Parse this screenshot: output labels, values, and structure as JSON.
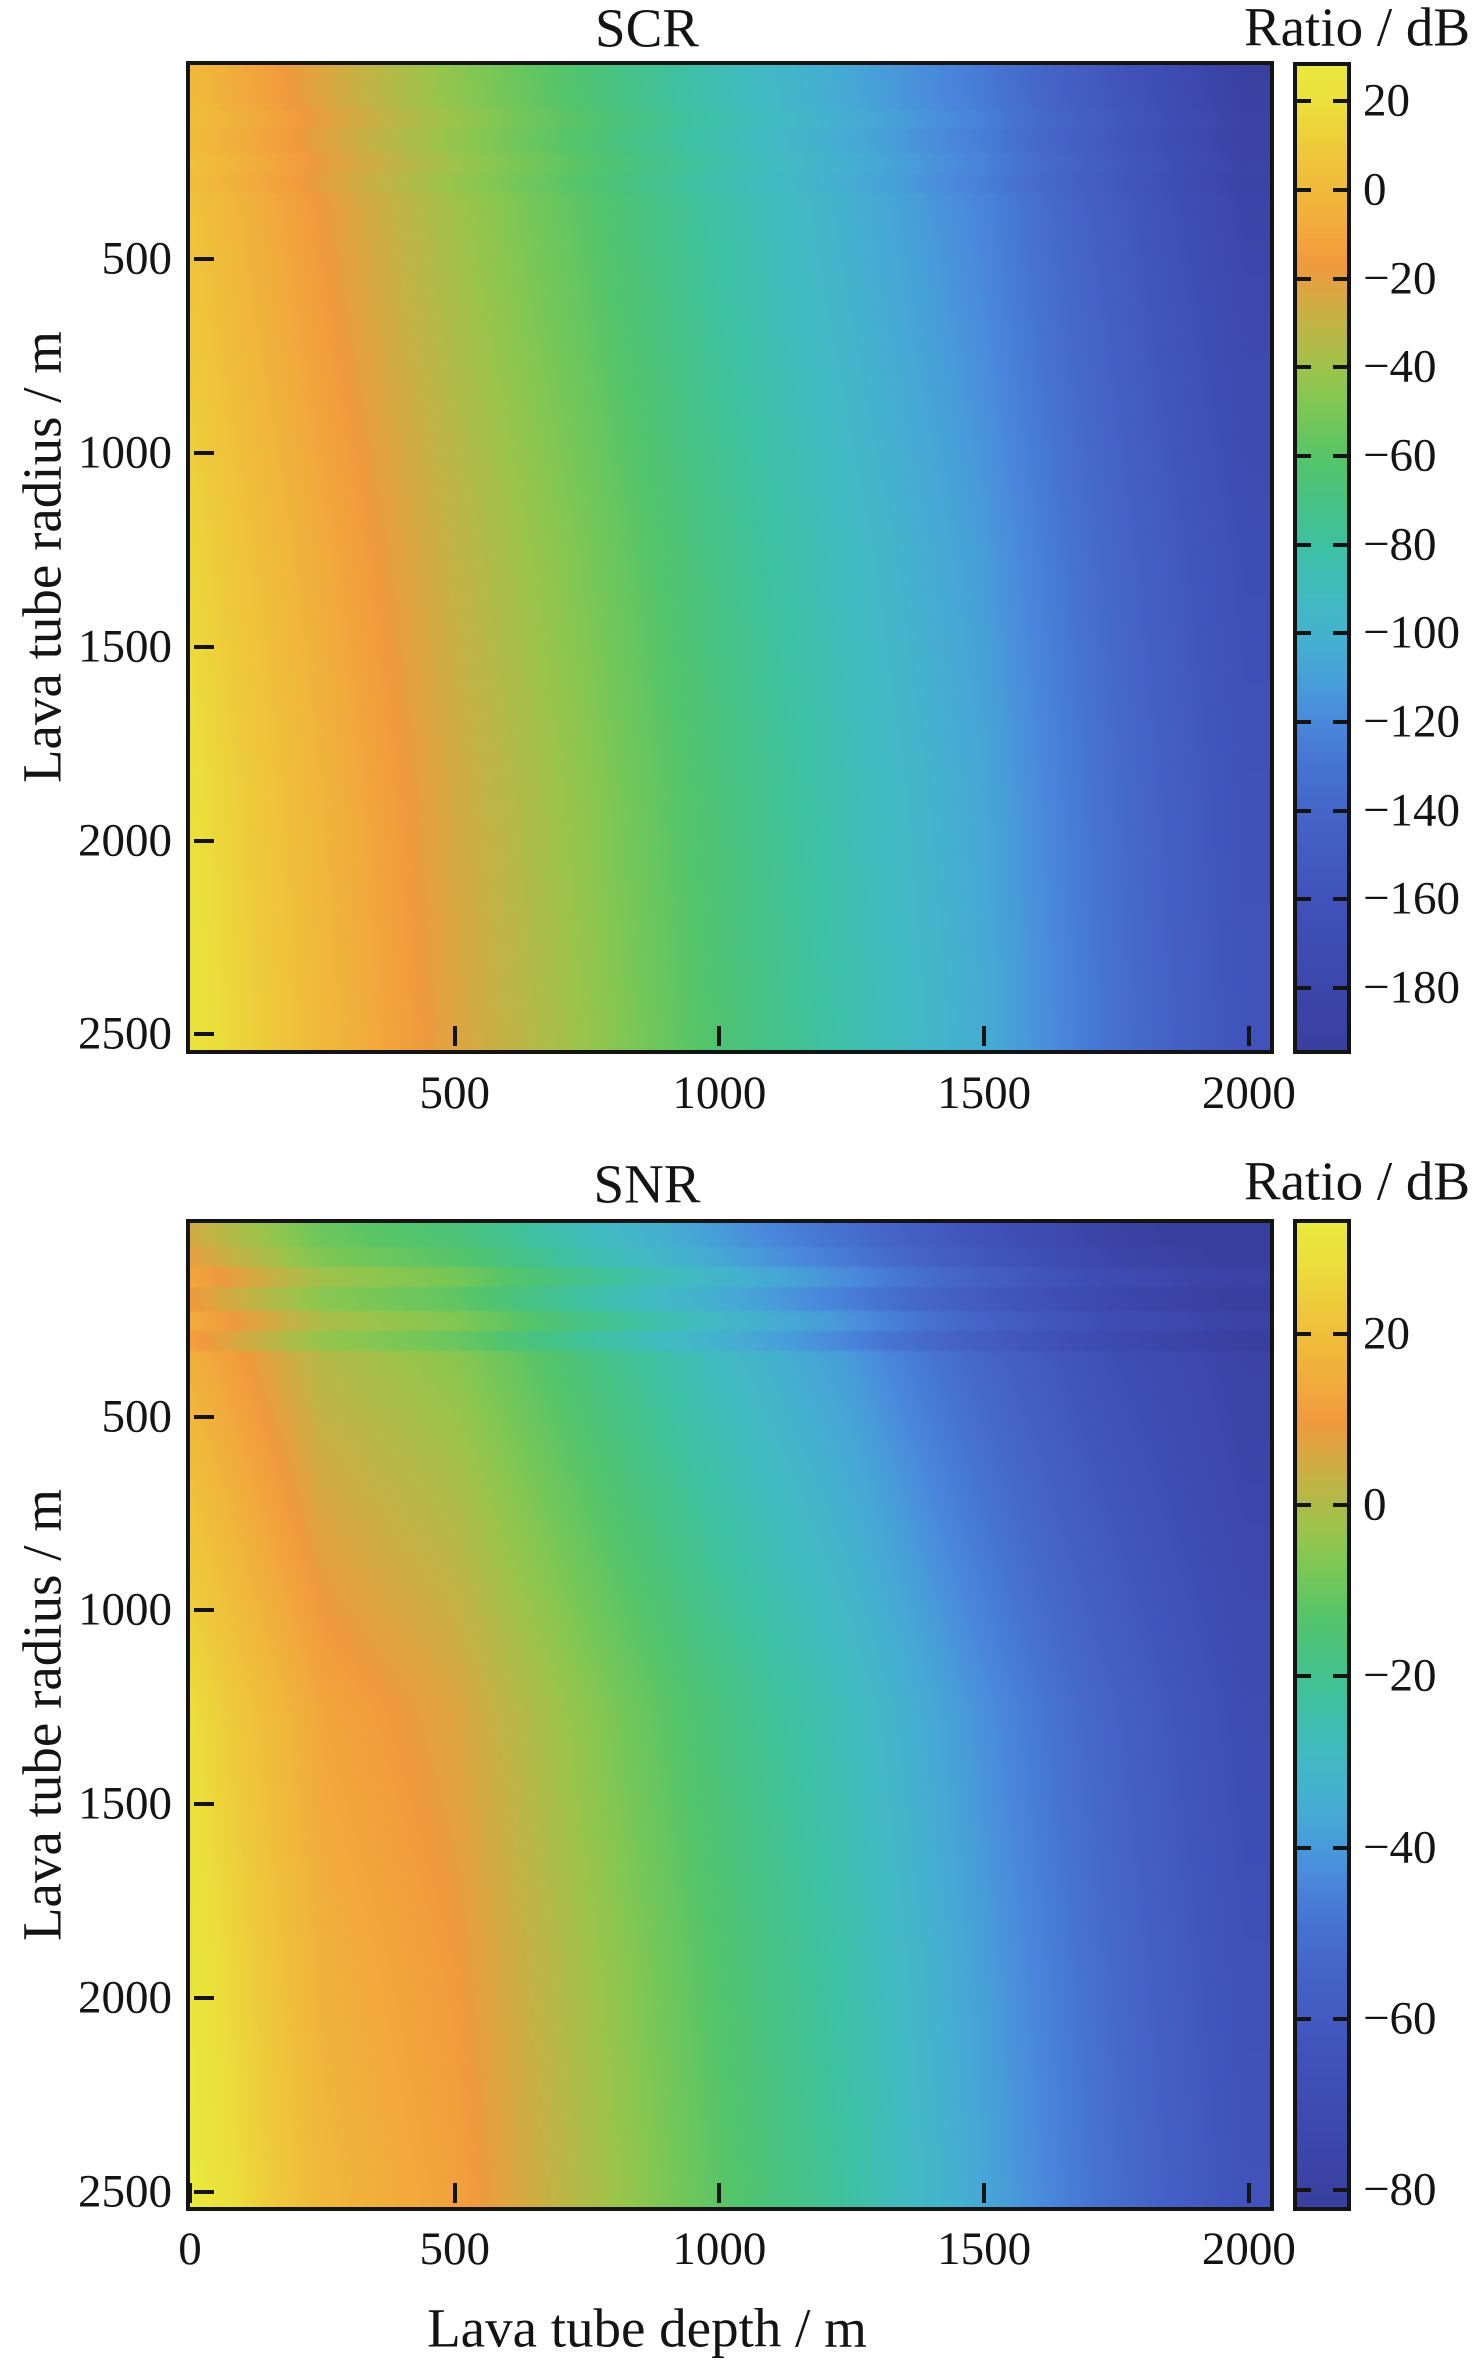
{
  "figure": {
    "background": "#ffffff",
    "text_color": "#141414"
  },
  "colormap": {
    "stops": [
      {
        "t": 0.0,
        "color": "#383f9e"
      },
      {
        "t": 0.06,
        "color": "#3c47ab"
      },
      {
        "t": 0.15,
        "color": "#4152bb"
      },
      {
        "t": 0.24,
        "color": "#4565c9"
      },
      {
        "t": 0.29,
        "color": "#4675d3"
      },
      {
        "t": 0.33,
        "color": "#4a87dc"
      },
      {
        "t": 0.38,
        "color": "#47a2d8"
      },
      {
        "t": 0.42,
        "color": "#44b2cf"
      },
      {
        "t": 0.46,
        "color": "#41bac2"
      },
      {
        "t": 0.51,
        "color": "#3ec0a4"
      },
      {
        "t": 0.555,
        "color": "#46c285"
      },
      {
        "t": 0.6,
        "color": "#55c46a"
      },
      {
        "t": 0.645,
        "color": "#77c757"
      },
      {
        "t": 0.69,
        "color": "#9cc44b"
      },
      {
        "t": 0.74,
        "color": "#c2b345"
      },
      {
        "t": 0.78,
        "color": "#e2a33f"
      },
      {
        "t": 0.8,
        "color": "#f09a3e"
      },
      {
        "t": 0.83,
        "color": "#f2a73c"
      },
      {
        "t": 0.87,
        "color": "#f0b83a"
      },
      {
        "t": 0.92,
        "color": "#eeca3b"
      },
      {
        "t": 0.96,
        "color": "#ebdf3b"
      },
      {
        "t": 1.0,
        "color": "#e9e93e"
      }
    ]
  },
  "chart_data": [
    {
      "type": "heatmap",
      "title": "SCR",
      "colorbar_label": "Ratio / dB",
      "ylabel": "Lava tube radius / m",
      "xlabel": "",
      "x_range_m": [
        0,
        2040
      ],
      "y_range_m": [
        0,
        2540
      ],
      "x_ticks": [
        500,
        1000,
        1500,
        2000
      ],
      "y_ticks": [
        500,
        1000,
        1500,
        2000,
        2500
      ],
      "color_limits_db": [
        -194,
        28
      ],
      "colorbar_ticks_db": [
        20,
        0,
        -20,
        -40,
        -60,
        -80,
        -100,
        -120,
        -140,
        -160,
        -180
      ],
      "grid": {
        "depth_m": [
          0,
          250,
          500,
          750,
          1000,
          1250,
          1500,
          1750,
          2000
        ],
        "radius_m": [
          0,
          625,
          1250,
          1875,
          2500
        ],
        "ratio_db": [
          [
            2,
            -21,
            -43,
            -63,
            -85,
            -105,
            -125,
            -155,
            -190
          ],
          [
            8,
            -15,
            -37,
            -57,
            -79,
            -99,
            -119,
            -147,
            -178
          ],
          [
            15,
            -8,
            -30,
            -50,
            -72,
            -92,
            -112,
            -140,
            -168
          ],
          [
            20,
            -3,
            -25,
            -45,
            -67,
            -87,
            -107,
            -135,
            -163
          ],
          [
            23,
            0,
            -22,
            -42,
            -64,
            -84,
            -104,
            -132,
            -160
          ]
        ]
      },
      "row_banding": {
        "band_height_m": 55,
        "amplitude_db": 2,
        "max_radius_m": 330,
        "first_band_extra_db": 2
      }
    },
    {
      "type": "heatmap",
      "title": "SNR",
      "colorbar_label": "Ratio / dB",
      "ylabel": "Lava tube radius / m",
      "xlabel": "Lava tube depth / m",
      "x_range_m": [
        0,
        2040
      ],
      "y_range_m": [
        0,
        2540
      ],
      "x_ticks": [
        0,
        500,
        1000,
        1500,
        2000
      ],
      "y_ticks": [
        500,
        1000,
        1500,
        2000,
        2500
      ],
      "color_limits_db": [
        -82,
        33
      ],
      "colorbar_ticks_db": [
        20,
        0,
        -20,
        -40,
        -60,
        -80
      ],
      "grid": {
        "depth_m": [
          0,
          250,
          500,
          750,
          1000,
          1250,
          1500,
          1750,
          2000
        ],
        "radius_m": [
          0,
          625,
          1250,
          1875,
          2500
        ],
        "ratio_db": [
          [
            11,
            -4,
            -10,
            -22,
            -34,
            -45,
            -59,
            -73,
            -80
          ],
          [
            20,
            5,
            -1,
            -13,
            -25,
            -36,
            -50,
            -64,
            -76
          ],
          [
            28,
            13,
            7,
            -5,
            -17,
            -28,
            -42,
            -56,
            -70
          ],
          [
            31,
            16,
            10,
            -2,
            -14,
            -25,
            -39,
            -53,
            -67
          ],
          [
            33,
            18,
            12,
            0,
            -12,
            -23,
            -37,
            -51,
            -65
          ]
        ]
      },
      "row_banding": {
        "band_height_m": 55,
        "amplitude_db": 4,
        "max_radius_m": 330,
        "first_band_extra_db": 6
      }
    }
  ]
}
